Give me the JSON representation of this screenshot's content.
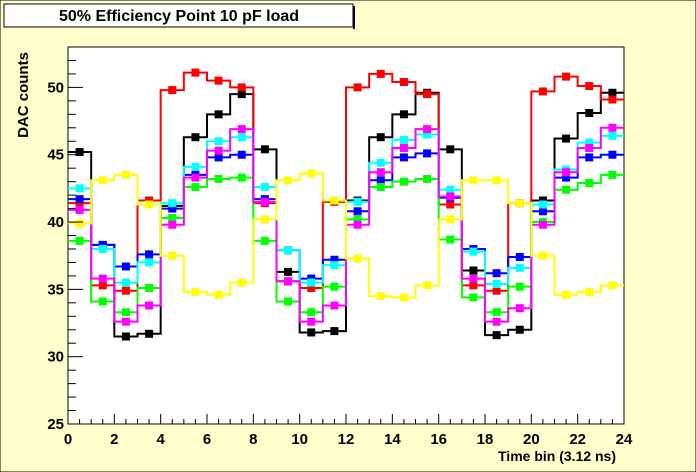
{
  "chart_data": {
    "type": "line",
    "title": "50% Efficiency Point 10 pF load",
    "xlabel": "Time bin (3.12 ns)",
    "ylabel": "DAC counts",
    "xlim": [
      0,
      24
    ],
    "ylim": [
      25,
      53
    ],
    "x_ticks": [
      0,
      2,
      4,
      6,
      8,
      10,
      12,
      14,
      16,
      18,
      20,
      22,
      24
    ],
    "y_ticks": [
      25,
      30,
      35,
      40,
      45,
      50
    ],
    "grid": false,
    "legend": "none",
    "x_bin_centers": [
      0.5,
      1.5,
      2.5,
      3.5,
      4.5,
      5.5,
      6.5,
      7.5,
      8.5,
      9.5,
      10.5,
      11.5,
      12.5,
      13.5,
      14.5,
      15.5,
      16.5,
      17.5,
      18.5,
      19.5,
      20.5,
      21.5,
      22.5,
      23.5
    ],
    "series": [
      {
        "color": "#000000",
        "values": [
          45.2,
          38.3,
          31.5,
          31.7,
          41.2,
          46.3,
          48.0,
          49.5,
          45.4,
          36.3,
          31.8,
          31.9,
          41.6,
          46.3,
          48.0,
          49.6,
          45.4,
          36.4,
          31.6,
          32.0,
          41.6,
          46.2,
          48.1,
          49.6
        ]
      },
      {
        "color": "#ff0000",
        "values": [
          41.4,
          35.3,
          34.9,
          41.6,
          49.8,
          51.1,
          50.5,
          50.0,
          41.4,
          35.6,
          35.1,
          41.5,
          50.0,
          51.0,
          50.4,
          49.5,
          41.3,
          35.3,
          34.9,
          41.4,
          49.7,
          50.8,
          50.1,
          49.1
        ]
      },
      {
        "color": "#0000ff",
        "values": [
          41.7,
          38.3,
          36.7,
          37.6,
          41.0,
          43.5,
          44.8,
          45.0,
          41.7,
          37.9,
          35.8,
          37.2,
          40.8,
          43.1,
          44.8,
          45.1,
          41.8,
          38.0,
          36.2,
          37.4,
          40.8,
          43.3,
          44.8,
          45.0
        ]
      },
      {
        "color": "#00ffff",
        "values": [
          42.5,
          38.0,
          35.5,
          37.0,
          41.4,
          44.1,
          46.0,
          46.3,
          42.6,
          37.9,
          35.5,
          36.8,
          41.5,
          44.4,
          46.1,
          46.5,
          42.4,
          37.8,
          35.4,
          36.6,
          41.3,
          43.9,
          45.9,
          46.4
        ]
      },
      {
        "color": "#00ff00",
        "values": [
          38.6,
          34.1,
          33.3,
          35.1,
          40.3,
          42.6,
          43.2,
          43.3,
          38.6,
          34.1,
          33.3,
          35.2,
          40.2,
          42.6,
          43.0,
          43.2,
          38.7,
          34.4,
          33.3,
          35.2,
          40.0,
          42.4,
          42.9,
          43.5
        ]
      },
      {
        "color": "#ff00ff",
        "values": [
          40.9,
          35.8,
          32.6,
          33.8,
          39.8,
          43.3,
          45.3,
          46.9,
          41.5,
          35.6,
          32.6,
          33.8,
          39.8,
          43.7,
          45.5,
          46.9,
          41.9,
          35.8,
          32.6,
          33.6,
          39.8,
          43.7,
          45.5,
          47.0
        ]
      },
      {
        "color": "#ffff00",
        "values": [
          39.9,
          43.1,
          43.5,
          41.3,
          37.5,
          34.8,
          34.6,
          35.5,
          40.2,
          43.1,
          43.6,
          41.6,
          37.3,
          34.5,
          34.4,
          35.3,
          40.2,
          43.1,
          43.1,
          41.4,
          37.5,
          34.6,
          34.8,
          35.3
        ]
      }
    ]
  }
}
